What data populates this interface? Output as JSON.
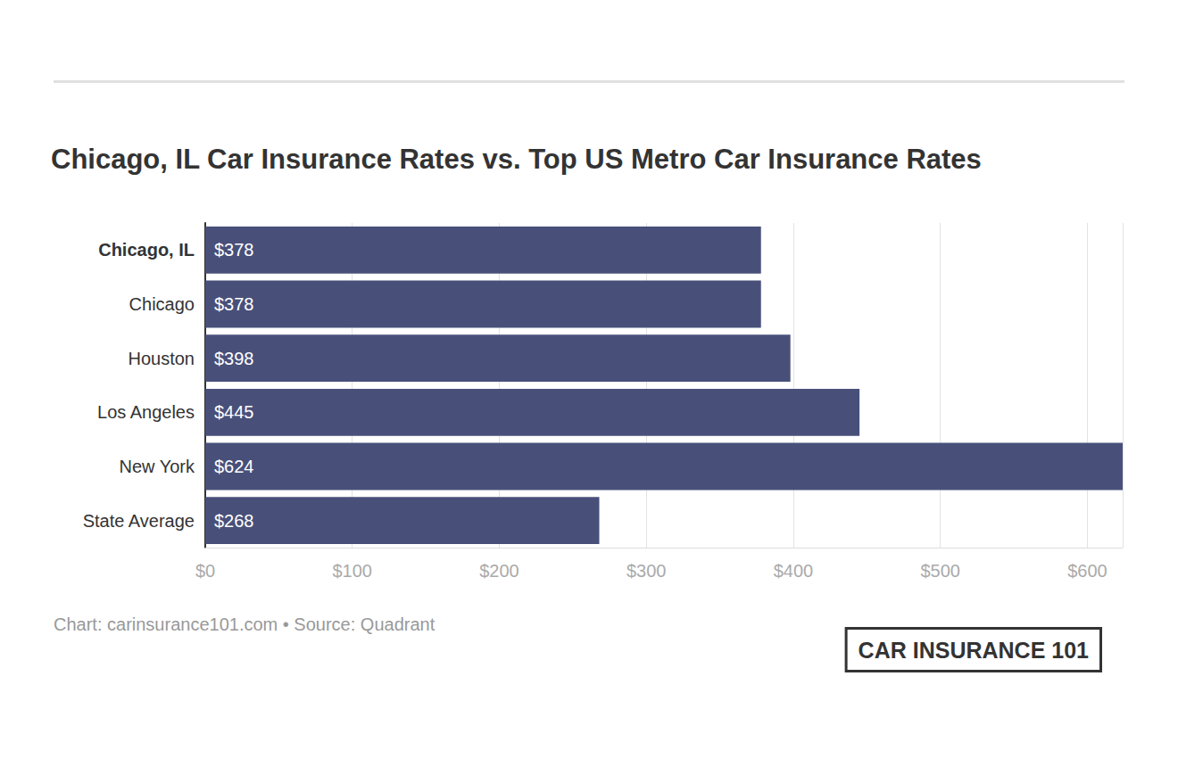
{
  "chart_data": {
    "type": "bar",
    "orientation": "horizontal",
    "title": "Chicago, IL Car Insurance Rates vs. Top US Metro Car Insurance Rates",
    "categories": [
      "Chicago, IL",
      "Chicago",
      "Houston",
      "Los Angeles",
      "New York",
      "State Average"
    ],
    "values": [
      378,
      378,
      398,
      445,
      624,
      268
    ],
    "value_labels": [
      "$378",
      "$378",
      "$398",
      "$445",
      "$624",
      "$268"
    ],
    "data_labels": true,
    "color": "#48507a",
    "xlim": [
      0,
      624
    ],
    "xticks": [
      {
        "value": 0,
        "label": "$0"
      },
      {
        "value": 100,
        "label": "$100"
      },
      {
        "value": 200,
        "label": "$200"
      },
      {
        "value": 300,
        "label": "$300"
      },
      {
        "value": 400,
        "label": "$400"
      },
      {
        "value": 500,
        "label": "$500"
      },
      {
        "value": 600,
        "label": "$600"
      }
    ],
    "grid": true,
    "annotations": [
      "Chart: carinsurance101.com • Source: Quadrant",
      "CAR INSURANCE 101"
    ]
  }
}
